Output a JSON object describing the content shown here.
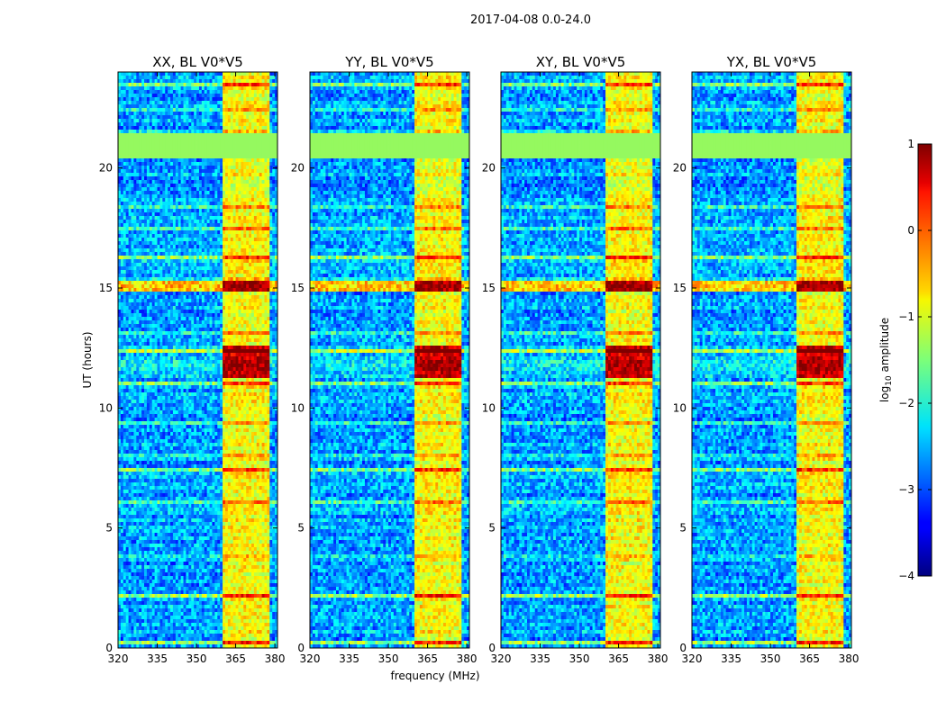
{
  "chart_data": {
    "type": "heatmap",
    "suptitle": "2017-04-08 0.0-24.0",
    "xlabel": "frequency (MHz)",
    "ylabel": "UT (hours)",
    "xlim": [
      320,
      381
    ],
    "ylim": [
      0,
      24
    ],
    "xticks": [
      320,
      335,
      350,
      365,
      380
    ],
    "yticks": [
      0,
      5,
      10,
      15,
      20
    ],
    "xtick_labels": [
      "320",
      "335",
      "350",
      "365",
      "380"
    ],
    "ytick_labels": [
      "0",
      "5",
      "10",
      "15",
      "20"
    ],
    "panels": [
      {
        "title": "XX, BL V0*V5",
        "pol": "XX"
      },
      {
        "title": "YY, BL V0*V5",
        "pol": "YY"
      },
      {
        "title": "XY, BL V0*V5",
        "pol": "XY"
      },
      {
        "title": "YX, BL V0*V5",
        "pol": "YX"
      }
    ],
    "bright_band_mhz": [
      360.5,
      377.5
    ],
    "flagged_rows_ut": [
      [
        20.4,
        21.4
      ]
    ],
    "strong_rows_ut": [
      [
        14.85,
        15.3
      ],
      [
        11.3,
        12.6
      ]
    ],
    "colorbar": {
      "label": "log10 amplitude",
      "min": -4,
      "max": 1,
      "ticks": [
        1,
        0,
        -1,
        -2,
        -3,
        -4
      ],
      "tick_labels": [
        "1",
        "0",
        "−1",
        "−2",
        "−3",
        "−4"
      ],
      "colormap": "jet"
    }
  },
  "colors": {
    "background": "#ffffff",
    "flagged": "#95f95f",
    "axes": "#000000"
  }
}
